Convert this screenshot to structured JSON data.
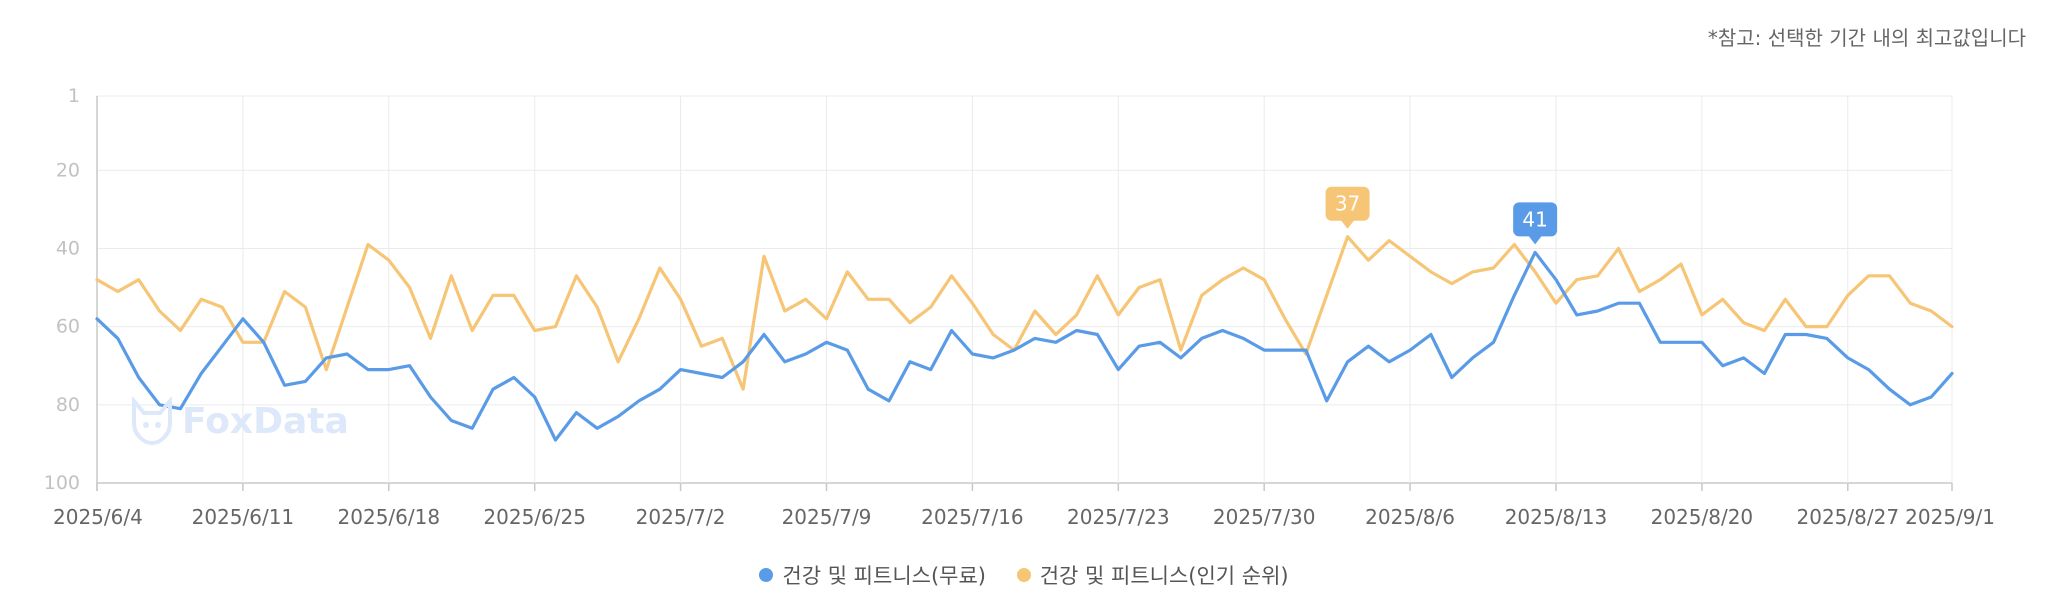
{
  "note": "*참고: 선택한 기간 내의 최고값입니다",
  "watermark": "FoxData",
  "colors": {
    "free": "#5a9be8",
    "popular": "#f6c576"
  },
  "legend": [
    {
      "label": "건강 및 피트니스(무료)",
      "color": "#5a9be8"
    },
    {
      "label": "건강 및 피트니스(인기 순위)",
      "color": "#f6c576"
    }
  ],
  "chart_data": {
    "type": "line",
    "y_reversed": true,
    "ylim": [
      1,
      100
    ],
    "y_ticks": [
      "1",
      "20",
      "40",
      "60",
      "80",
      "100"
    ],
    "x_tick_labels": [
      "2025/6/4",
      "2025/6/11",
      "2025/6/18",
      "2025/6/25",
      "2025/7/2",
      "2025/7/9",
      "2025/7/16",
      "2025/7/23",
      "2025/7/30",
      "2025/8/6",
      "2025/8/13",
      "2025/8/20",
      "2025/8/27",
      "2025/9/1"
    ],
    "x_start": "2025/6/4",
    "x_end": "2025/9/1",
    "series": [
      {
        "name": "건강 및 피트니스(무료)",
        "color": "#5a9be8",
        "peak_label": "41",
        "values": [
          58,
          63,
          73,
          80,
          81,
          72,
          65,
          58,
          64,
          75,
          74,
          68,
          67,
          71,
          71,
          70,
          78,
          84,
          86,
          76,
          73,
          78,
          89,
          82,
          86,
          83,
          79,
          76,
          71,
          72,
          73,
          69,
          62,
          69,
          67,
          64,
          66,
          76,
          79,
          69,
          71,
          61,
          67,
          68,
          66,
          63,
          64,
          61,
          62,
          71,
          65,
          64,
          68,
          63,
          61,
          63,
          66,
          66,
          66,
          79,
          69,
          65,
          69,
          66,
          62,
          73,
          68,
          64,
          52,
          41,
          48,
          57,
          56,
          54,
          54,
          64,
          64,
          64,
          70,
          68,
          72,
          62,
          62,
          63,
          68,
          71,
          76,
          80,
          78,
          72
        ]
      },
      {
        "name": "건강 및 피트니스(인기 순위)",
        "color": "#f6c576",
        "peak_label": "37",
        "values": [
          48,
          51,
          48,
          56,
          61,
          53,
          55,
          64,
          64,
          51,
          55,
          71,
          55,
          39,
          43,
          50,
          63,
          47,
          61,
          52,
          52,
          61,
          60,
          47,
          55,
          69,
          58,
          45,
          53,
          65,
          63,
          76,
          42,
          56,
          53,
          58,
          46,
          53,
          53,
          59,
          55,
          47,
          54,
          62,
          66,
          56,
          62,
          57,
          47,
          57,
          50,
          48,
          66,
          52,
          48,
          45,
          48,
          58,
          67,
          52,
          37,
          43,
          38,
          42,
          46,
          49,
          46,
          45,
          39,
          46,
          54,
          48,
          47,
          40,
          51,
          48,
          44,
          57,
          53,
          59,
          61,
          53,
          60,
          60,
          52,
          47,
          47,
          54,
          56,
          60
        ]
      }
    ]
  }
}
